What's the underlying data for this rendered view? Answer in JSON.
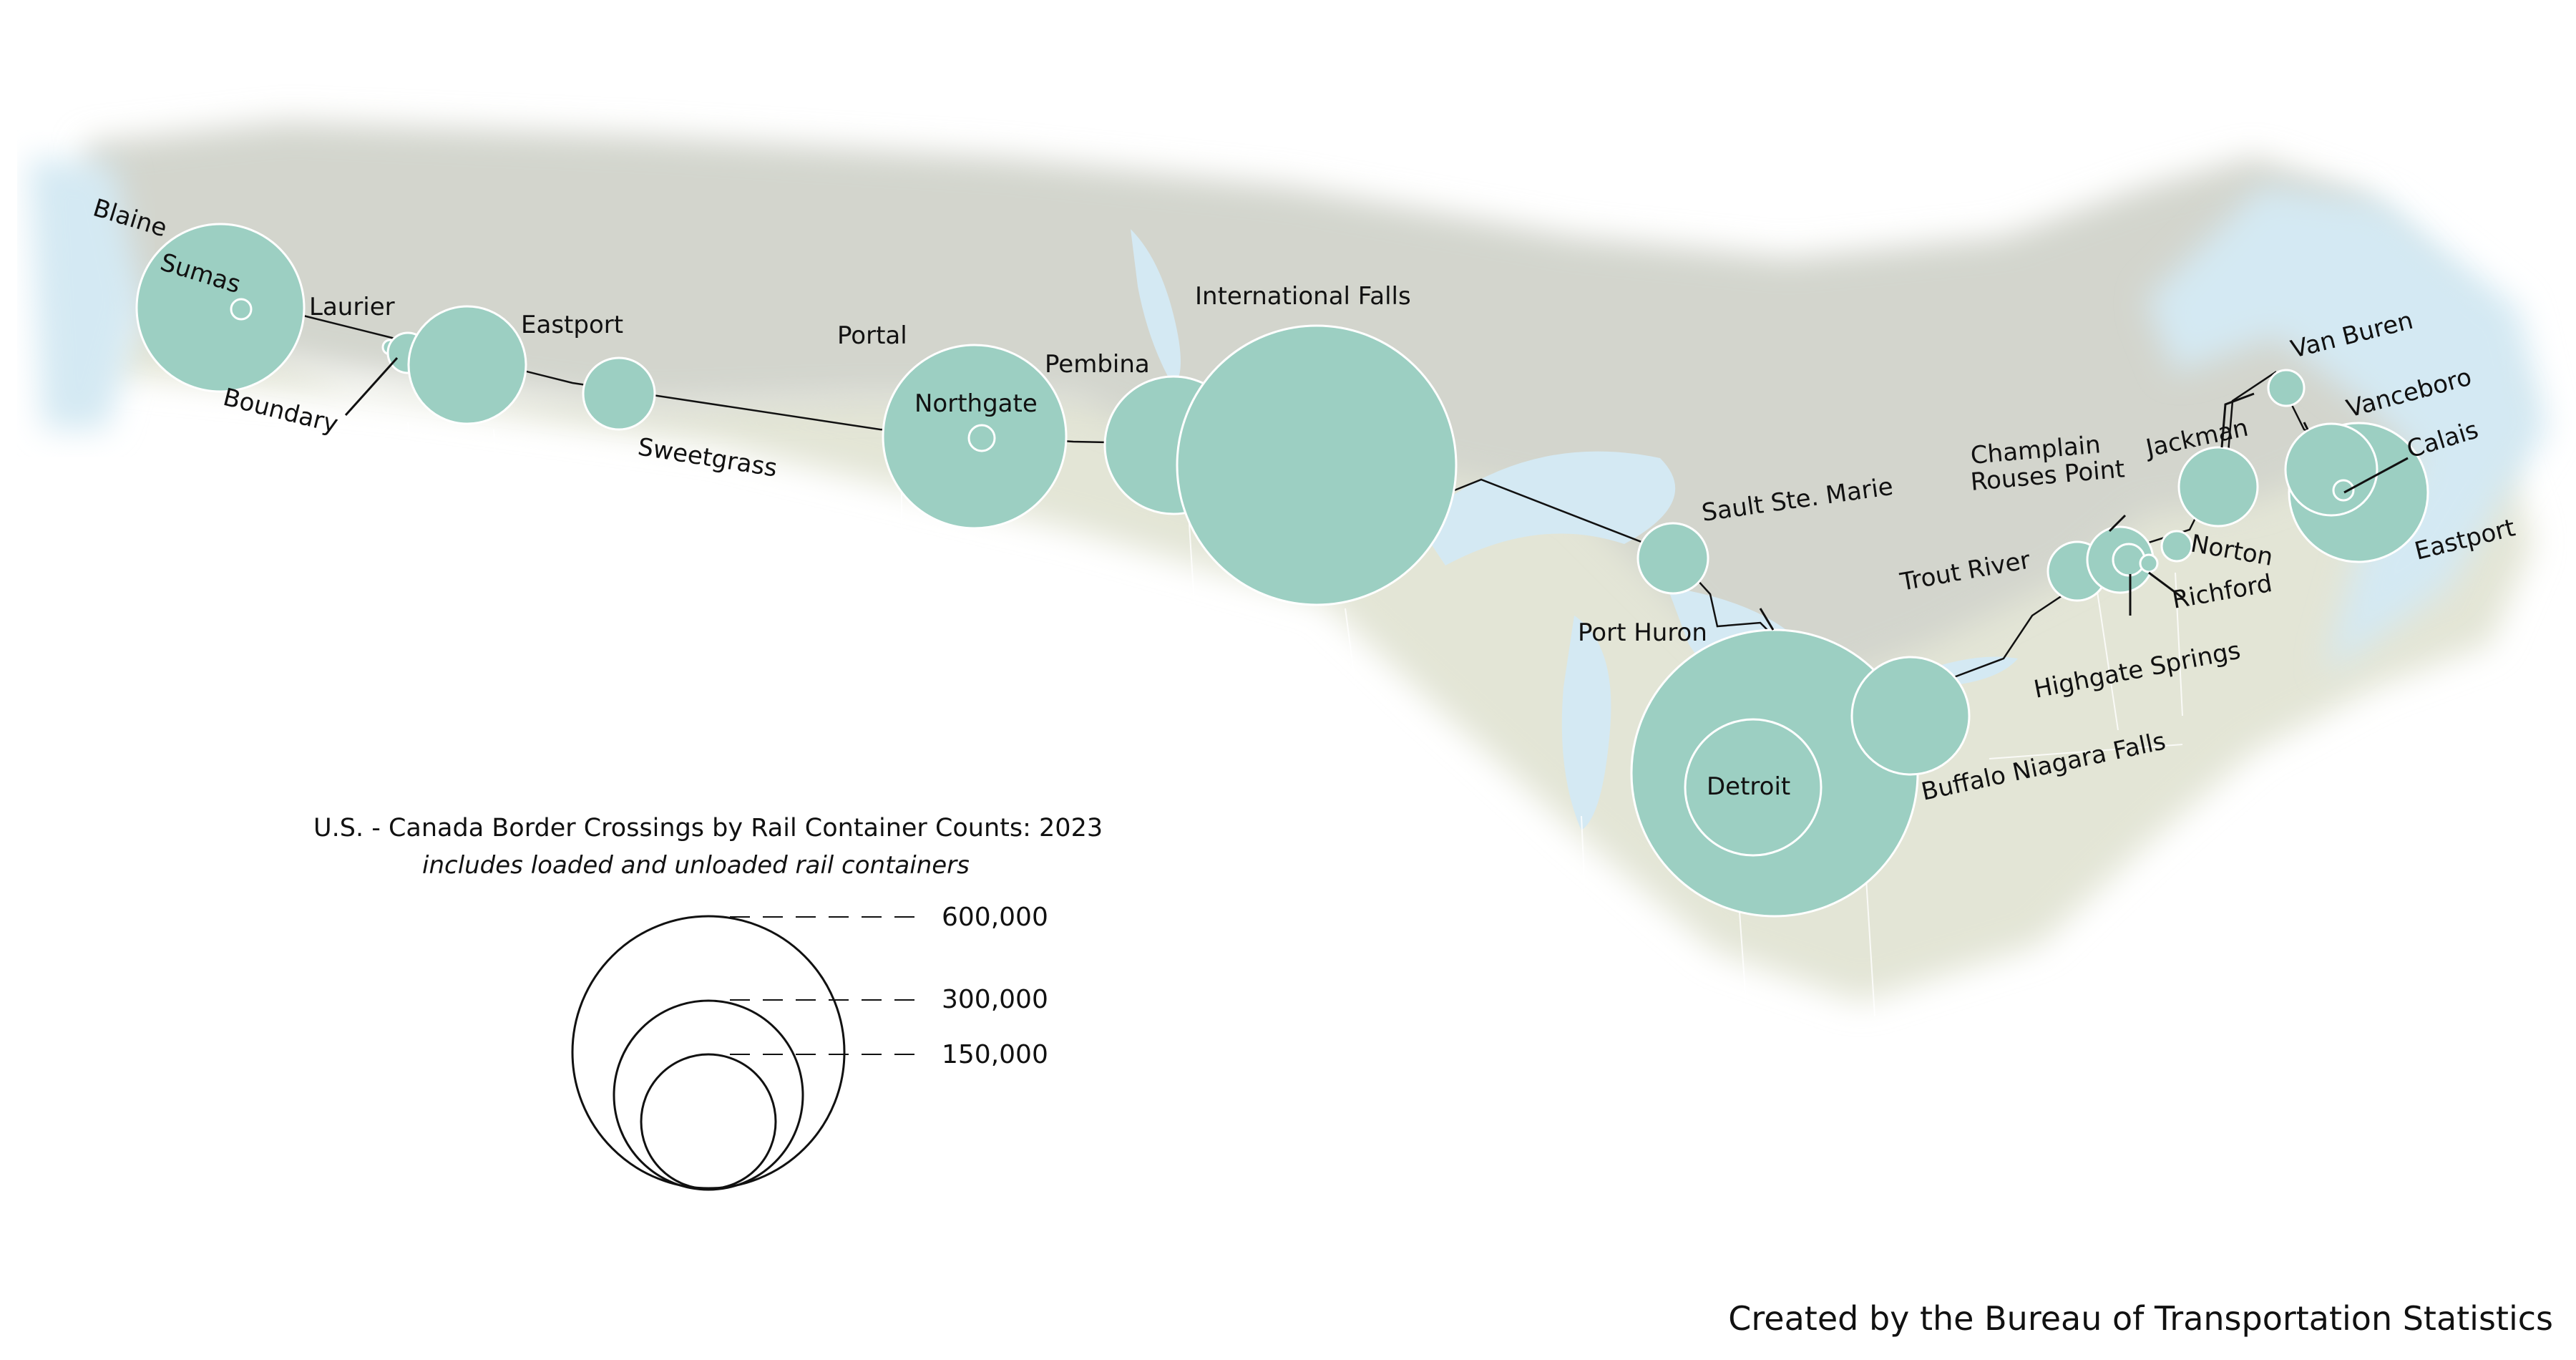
{
  "legend": {
    "title": "U.S. - Canada Border Crossings by Rail Container Counts: 2023",
    "subtitle": "includes loaded and unloaded rail containers",
    "scale": [
      {
        "value": 600000,
        "label": "600,000"
      },
      {
        "value": 300000,
        "label": "300,000"
      },
      {
        "value": 150000,
        "label": "150,000"
      }
    ]
  },
  "credit": "Created by the Bureau of Transportation Statistics",
  "colors": {
    "bubble": "#9ccfc2",
    "canada": "#d3d5cd",
    "us": "#e3e5d6",
    "water": "#d4e9f3"
  },
  "ports": [
    {
      "name": "Blaine",
      "label": "Blaine"
    },
    {
      "name": "Sumas",
      "label": "Sumas"
    },
    {
      "name": "Laurier",
      "label": "Laurier"
    },
    {
      "name": "Boundary",
      "label": "Boundary"
    },
    {
      "name": "Eastport (Idaho)",
      "label": "Eastport"
    },
    {
      "name": "Sweetgrass",
      "label": "Sweetgrass"
    },
    {
      "name": "Portal",
      "label": "Portal"
    },
    {
      "name": "Northgate",
      "label": "Northgate"
    },
    {
      "name": "Pembina",
      "label": "Pembina"
    },
    {
      "name": "International Falls",
      "label": "International Falls"
    },
    {
      "name": "Sault Ste. Marie",
      "label": "Sault Ste. Marie"
    },
    {
      "name": "Port Huron",
      "label": "Port Huron"
    },
    {
      "name": "Detroit",
      "label": "Detroit"
    },
    {
      "name": "Buffalo Niagara Falls",
      "label": "Buffalo Niagara Falls"
    },
    {
      "name": "Trout River",
      "label": "Trout River"
    },
    {
      "name": "Champlain Rouses Point",
      "label_line1": "Champlain",
      "label_line2": "Rouses Point"
    },
    {
      "name": "Highgate Springs",
      "label": "Highgate Springs"
    },
    {
      "name": "Norton",
      "label": "Norton"
    },
    {
      "name": "Richford",
      "label": "Richford"
    },
    {
      "name": "Jackman",
      "label": "Jackman"
    },
    {
      "name": "Van Buren",
      "label": "Van Buren"
    },
    {
      "name": "Vanceboro",
      "label": "Vanceboro"
    },
    {
      "name": "Calais",
      "label": "Calais"
    },
    {
      "name": "Eastport (Maine)",
      "label": "Eastport"
    }
  ]
}
